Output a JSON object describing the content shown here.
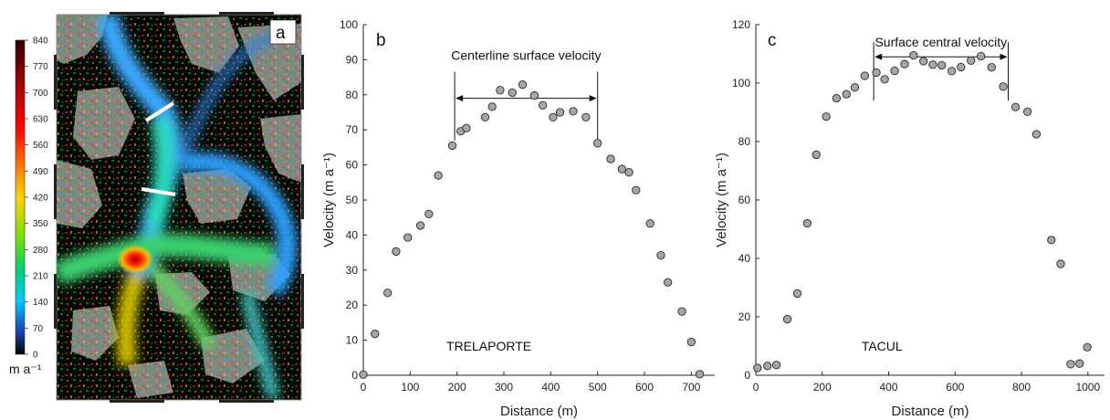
{
  "panels": {
    "a": "a",
    "b": "b",
    "c": "c"
  },
  "colorbar": {
    "ticks": [
      "840",
      "770",
      "700",
      "630",
      "560",
      "490",
      "420",
      "350",
      "280",
      "210",
      "140",
      "70",
      "0"
    ],
    "unit": "m a⁻¹",
    "colors": [
      "#000000",
      "#1c3fb0",
      "#00c8ff",
      "#00d070",
      "#7fe000",
      "#ffd000",
      "#ff7a00",
      "#ff0000",
      "#a00000",
      "#300000"
    ]
  },
  "chart_data": [
    {
      "type": "scatter",
      "panel": "b",
      "ylabel": "Velocity (m a⁻¹)",
      "xlabel": "Distance (m)",
      "xlim": [
        0,
        750
      ],
      "ylim": [
        0,
        100
      ],
      "xticks": [
        0,
        100,
        200,
        300,
        400,
        500,
        600,
        700
      ],
      "yticks": [
        0,
        10,
        20,
        30,
        40,
        50,
        60,
        70,
        80,
        90,
        100
      ],
      "annotation": "Centerline surface velocity",
      "arrow_range": [
        195,
        500
      ],
      "site_label": "TRELAPORTE",
      "points": [
        [
          0,
          0.2
        ],
        [
          25,
          11.8
        ],
        [
          52,
          23.5
        ],
        [
          70,
          35.3
        ],
        [
          95,
          39.3
        ],
        [
          122,
          42.7
        ],
        [
          140,
          46.0
        ],
        [
          160,
          57.0
        ],
        [
          190,
          65.5
        ],
        [
          208,
          69.6
        ],
        [
          220,
          70.5
        ],
        [
          260,
          73.6
        ],
        [
          275,
          76.6
        ],
        [
          292,
          81.3
        ],
        [
          318,
          80.6
        ],
        [
          340,
          82.9
        ],
        [
          365,
          79.8
        ],
        [
          383,
          77.0
        ],
        [
          405,
          73.6
        ],
        [
          420,
          75.0
        ],
        [
          448,
          75.3
        ],
        [
          475,
          73.6
        ],
        [
          500,
          66.2
        ],
        [
          528,
          61.7
        ],
        [
          552,
          58.8
        ],
        [
          567,
          57.9
        ],
        [
          582,
          52.8
        ],
        [
          612,
          43.3
        ],
        [
          635,
          34.2
        ],
        [
          650,
          26.5
        ],
        [
          680,
          18.2
        ],
        [
          700,
          9.5
        ],
        [
          718,
          0.3
        ]
      ]
    },
    {
      "type": "scatter",
      "panel": "c",
      "ylabel": "Velocity (m a⁻¹)",
      "xlabel": "Distance (m)",
      "xlim": [
        0,
        1050
      ],
      "ylim": [
        0,
        120
      ],
      "xticks": [
        0,
        200,
        400,
        600,
        800,
        1000
      ],
      "yticks": [
        0,
        20,
        40,
        60,
        80,
        100,
        120
      ],
      "annotation": "Surface central velocity",
      "arrow_range": [
        355,
        760
      ],
      "site_label": "TACUL",
      "points": [
        [
          5,
          2.5
        ],
        [
          35,
          3.2
        ],
        [
          62,
          3.5
        ],
        [
          95,
          19.2
        ],
        [
          125,
          28.0
        ],
        [
          155,
          52.0
        ],
        [
          182,
          75.5
        ],
        [
          212,
          88.5
        ],
        [
          243,
          94.8
        ],
        [
          273,
          96.2
        ],
        [
          298,
          98.5
        ],
        [
          328,
          102.5
        ],
        [
          363,
          103.6
        ],
        [
          388,
          101.3
        ],
        [
          418,
          104.2
        ],
        [
          448,
          106.5
        ],
        [
          475,
          109.5
        ],
        [
          505,
          107.5
        ],
        [
          533,
          106.3
        ],
        [
          560,
          106.1
        ],
        [
          590,
          104.1
        ],
        [
          618,
          105.5
        ],
        [
          648,
          107.7
        ],
        [
          678,
          109.2
        ],
        [
          710,
          105.4
        ],
        [
          745,
          98.8
        ],
        [
          782,
          91.8
        ],
        [
          818,
          90.2
        ],
        [
          845,
          82.5
        ],
        [
          890,
          46.3
        ],
        [
          918,
          38.1
        ],
        [
          948,
          3.8
        ],
        [
          975,
          4.0
        ],
        [
          998,
          9.6
        ]
      ]
    }
  ]
}
